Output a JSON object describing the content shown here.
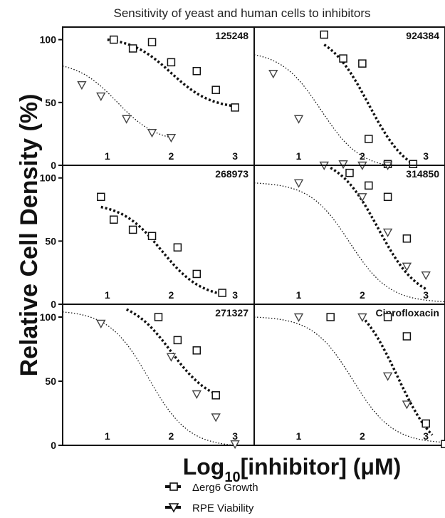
{
  "chart_data": {
    "type": "scatter",
    "title": "Sensitivity of yeast and human cells to inhibitors",
    "ylabel": "Relative Cell Density (%)",
    "xlabel": {
      "prefix": "Log",
      "subscript": "10",
      "suffix": "[inhibitor] (μM)"
    },
    "legend_position": "bottom",
    "series_names": [
      "Δerg6 Growth",
      "RPE Viability"
    ],
    "colors": {
      "erg6": "#111111",
      "rpe": "#444444",
      "axis": "#111111"
    },
    "x_ticks": [
      1,
      2,
      3
    ],
    "y_ticks": [
      0,
      50,
      100
    ],
    "panels": [
      {
        "title": "125248",
        "xlim": [
          0.3,
          3.3
        ],
        "ylim": [
          0,
          110
        ],
        "erg6": {
          "x": [
            1.1,
            1.4,
            1.7,
            2.0,
            2.4,
            2.7,
            3.0
          ],
          "y": [
            100,
            93,
            98,
            82,
            75,
            60,
            46
          ]
        },
        "erg6_fit": {
          "x": [
            1.0,
            3.0
          ],
          "y": [
            100,
            47
          ]
        },
        "rpe": {
          "x": [
            0.6,
            0.9,
            1.3,
            1.7,
            2.0
          ],
          "y": [
            64,
            55,
            37,
            26,
            22
          ]
        },
        "rpe_fit": {
          "x": [
            0.3,
            2.0
          ],
          "y": [
            79,
            22
          ]
        }
      },
      {
        "title": "924384",
        "xlim": [
          0.3,
          3.3
        ],
        "ylim": [
          0,
          110
        ],
        "erg6": {
          "x": [
            1.4,
            1.7,
            2.0,
            2.1,
            2.4,
            2.8
          ],
          "y": [
            104,
            85,
            81,
            21,
            1,
            1
          ]
        },
        "erg6_fit": {
          "x": [
            1.4,
            2.8
          ],
          "y": [
            96,
            1
          ]
        },
        "rpe": {
          "x": [
            0.6,
            1.0,
            1.4,
            1.7,
            2.0,
            2.4
          ],
          "y": [
            73,
            37,
            0,
            1,
            0,
            0
          ]
        },
        "rpe_fit": {
          "x": [
            0.3,
            2.4
          ],
          "y": [
            88,
            0
          ]
        }
      },
      {
        "title": "268973",
        "xlim": [
          0.3,
          3.3
        ],
        "ylim": [
          0,
          110
        ],
        "erg6": {
          "x": [
            0.9,
            1.1,
            1.4,
            1.7,
            2.1,
            2.4,
            2.8
          ],
          "y": [
            85,
            67,
            59,
            54,
            45,
            24,
            9
          ]
        },
        "erg6_fit": {
          "x": [
            0.9,
            2.8
          ],
          "y": [
            77,
            8
          ]
        },
        "rpe": {
          "x": [],
          "y": []
        },
        "rpe_fit": {
          "x": [],
          "y": []
        }
      },
      {
        "title": "314850",
        "xlim": [
          0.3,
          3.3
        ],
        "ylim": [
          0,
          110
        ],
        "erg6": {
          "x": [
            1.8,
            2.1,
            2.4,
            2.7
          ],
          "y": [
            104,
            94,
            85,
            52
          ]
        },
        "erg6_fit": {
          "x": [
            1.5,
            3.0
          ],
          "y": [
            108,
            12
          ]
        },
        "rpe": {
          "x": [
            1.0,
            2.0,
            2.4,
            2.7,
            3.0
          ],
          "y": [
            96,
            85,
            57,
            30,
            23
          ]
        },
        "rpe_fit": {
          "x": [
            0.3,
            3.3
          ],
          "y": [
            96,
            2
          ]
        }
      },
      {
        "title": "271327",
        "xlim": [
          0.3,
          3.3
        ],
        "ylim": [
          0,
          110
        ],
        "erg6": {
          "x": [
            1.8,
            2.1,
            2.4,
            2.7
          ],
          "y": [
            100,
            82,
            74,
            39
          ]
        },
        "erg6_fit": {
          "x": [
            1.3,
            2.7
          ],
          "y": [
            106,
            40
          ]
        },
        "rpe": {
          "x": [
            0.9,
            2.0,
            2.4,
            2.7,
            3.0
          ],
          "y": [
            95,
            69,
            40,
            22,
            1
          ]
        },
        "rpe_fit": {
          "x": [
            0.3,
            3.0
          ],
          "y": [
            104,
            0
          ]
        }
      },
      {
        "title": "Ciprofloxacin",
        "xlim": [
          0.3,
          3.3
        ],
        "ylim": [
          0,
          110
        ],
        "erg6": {
          "x": [
            1.5,
            2.4,
            2.7,
            3.0,
            3.3
          ],
          "y": [
            100,
            100,
            85,
            17,
            1
          ]
        },
        "erg6_fit": {
          "x": [
            2.0,
            3.1
          ],
          "y": [
            100,
            8
          ]
        },
        "rpe": {
          "x": [
            1.0,
            2.0,
            2.4,
            2.7,
            3.4
          ],
          "y": [
            100,
            100,
            54,
            32,
            7
          ]
        },
        "rpe_fit": {
          "x": [
            0.3,
            3.4
          ],
          "y": [
            100,
            2
          ]
        }
      }
    ]
  }
}
